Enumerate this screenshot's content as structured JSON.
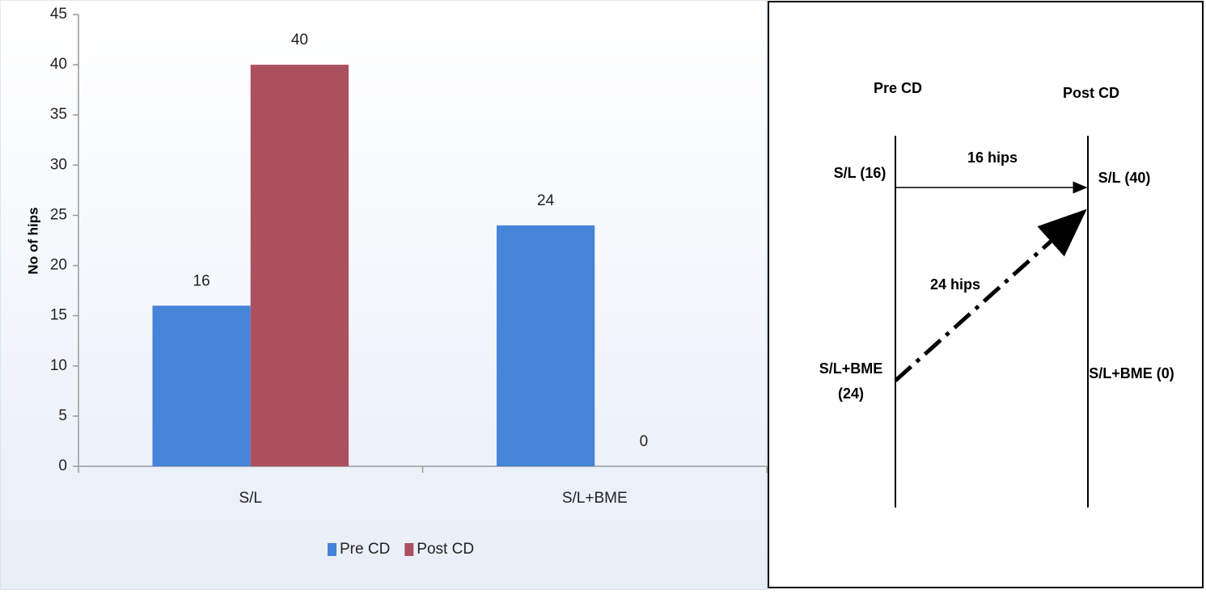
{
  "chart_data": {
    "type": "bar",
    "y_label": "No of hips",
    "categories": [
      "S/L",
      "S/L+BME"
    ],
    "series": [
      {
        "name": "Pre CD",
        "color": "#4684d9",
        "values": [
          16,
          24
        ]
      },
      {
        "name": "Post CD",
        "color": "#ad505e",
        "values": [
          40,
          0
        ]
      }
    ],
    "ylim": [
      0,
      45
    ],
    "yticks": [
      0,
      5,
      10,
      15,
      20,
      25,
      30,
      35,
      40,
      45
    ],
    "legend": "bottom",
    "grid": false
  },
  "diagram": {
    "columns": [
      "Pre CD",
      "Post CD"
    ],
    "nodes": [
      {
        "label": "S/L (16)"
      },
      {
        "label_lines": [
          "S/L+BME",
          "(24)"
        ]
      },
      {
        "label": "S/L (40)"
      },
      {
        "label": "S/L+BME (0)"
      }
    ],
    "edges": [
      {
        "label": "16 hips"
      },
      {
        "label": "24 hips"
      }
    ]
  }
}
